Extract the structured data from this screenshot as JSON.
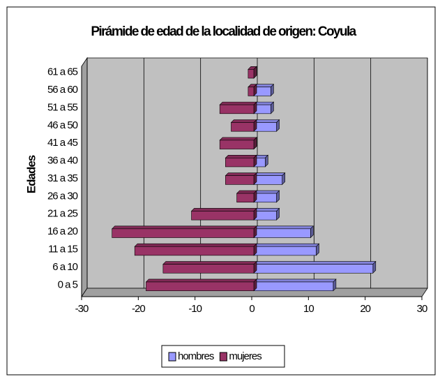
{
  "chart_data": {
    "type": "bar",
    "orientation": "horizontal",
    "title": "Pirámide de edad de la localidad de origen: Coyula",
    "y_label": "Edades",
    "categories": [
      "0 a 5",
      "6 a 10",
      "11 a 15",
      "16 a 20",
      "21 a 25",
      "26 a 30",
      "31 a 35",
      "36 a 40",
      "41 a 45",
      "46 a 50",
      "51 a 55",
      "56 a 60",
      "61 a 65"
    ],
    "series": [
      {
        "name": "hombres",
        "color": "#9999ff",
        "values": [
          14,
          21,
          11,
          10,
          4,
          4,
          5,
          2,
          0,
          4,
          3,
          3,
          0
        ]
      },
      {
        "name": "mujeres",
        "color": "#993366",
        "values": [
          -19,
          -16,
          -21,
          -25,
          -11,
          -3,
          -5,
          -5,
          -6,
          -4,
          -6,
          -1,
          -1
        ]
      }
    ],
    "xlim": [
      -30,
      30
    ],
    "xticks": [
      -30,
      -20,
      -10,
      0,
      10,
      20,
      30
    ],
    "grid": true,
    "legend": "bottom"
  }
}
